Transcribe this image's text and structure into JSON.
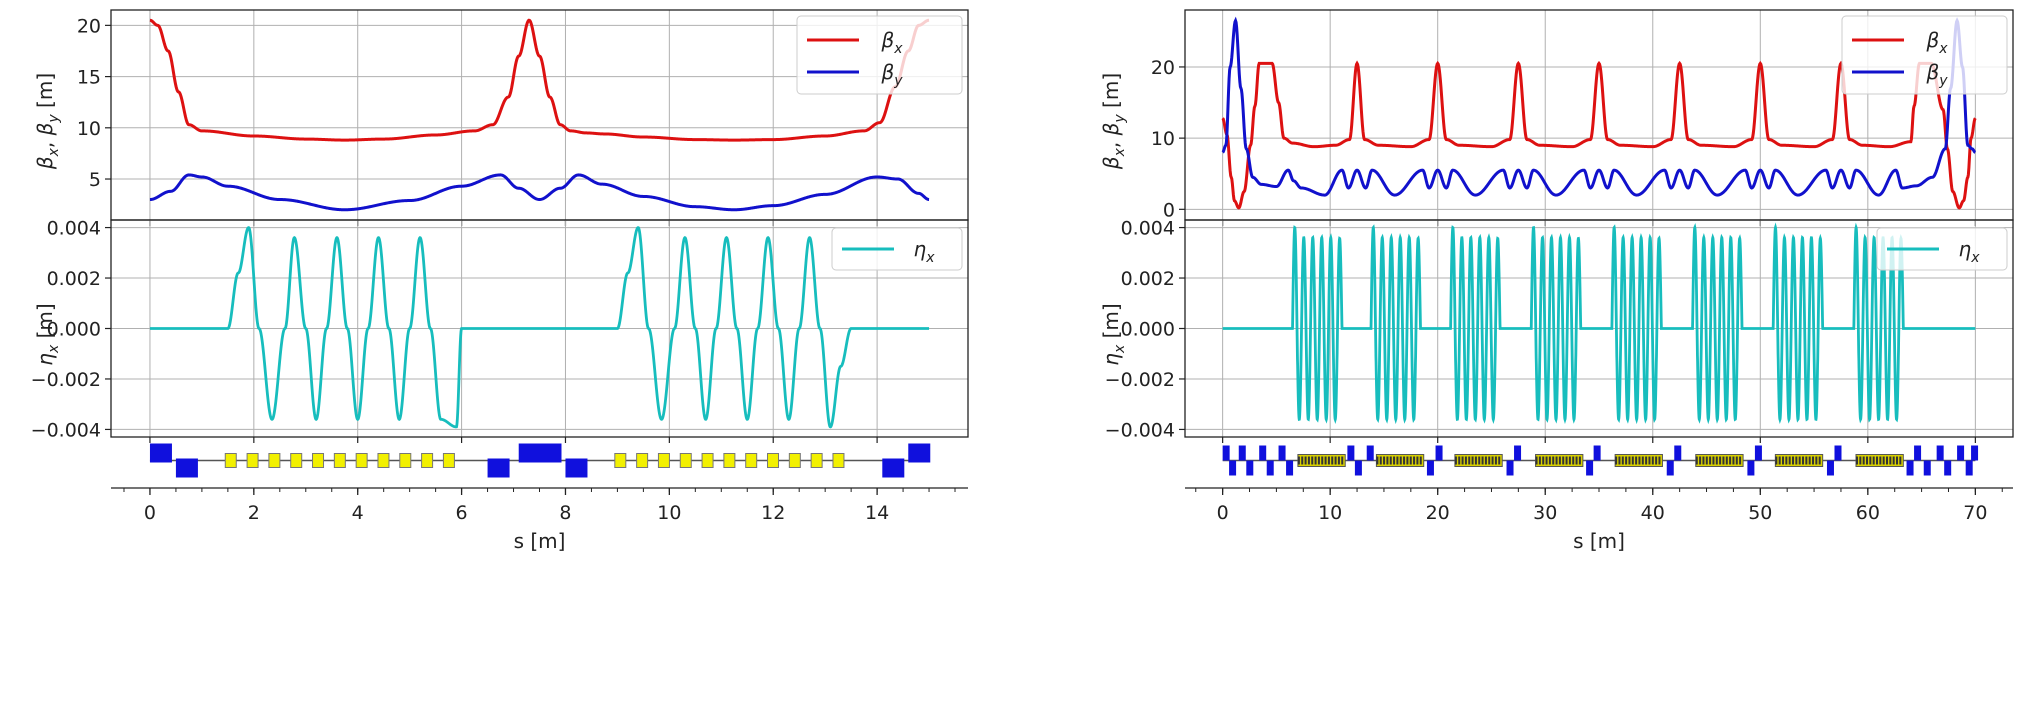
{
  "chart_data": [
    {
      "name": "left",
      "type": "line",
      "s_range": [
        0,
        15
      ],
      "xlim": [
        -0.75,
        15.75
      ],
      "xticks": [
        "0",
        "2",
        "4",
        "6",
        "8",
        "10",
        "12",
        "14"
      ],
      "xtick_values": [
        0,
        2,
        4,
        6,
        8,
        10,
        12,
        14
      ],
      "xlabel": "s [m]",
      "beta": {
        "ylabel": "β_x, β_y [m]",
        "ylim": [
          1.0,
          21.5
        ],
        "yticks": [
          "5",
          "10",
          "15",
          "20"
        ],
        "ytick_values": [
          5,
          10,
          15,
          20
        ],
        "series": [
          {
            "name": "β_x",
            "color": "#dd1111",
            "s": [
              0,
              0.15,
              0.35,
              0.55,
              0.75,
              1.0,
              2.0,
              3.0,
              3.75,
              4.5,
              5.5,
              6.25,
              6.6,
              6.9,
              7.1,
              7.3,
              7.5,
              7.7,
              7.9,
              8.1,
              8.4,
              8.75,
              9.5,
              10.5,
              11.25,
              12.0,
              13.0,
              13.75,
              14.05,
              14.35,
              14.6,
              14.8,
              15.0
            ],
            "values": [
              20.5,
              20.0,
              17.5,
              13.5,
              10.3,
              9.7,
              9.2,
              8.9,
              8.8,
              8.9,
              9.3,
              9.7,
              10.3,
              13.0,
              17.0,
              20.5,
              17.0,
              13.0,
              10.3,
              9.7,
              9.5,
              9.4,
              9.1,
              8.85,
              8.8,
              8.85,
              9.2,
              9.7,
              10.5,
              14.0,
              17.5,
              20.0,
              20.5
            ]
          },
          {
            "name": "β_y",
            "color": "#1111cc",
            "s": [
              0,
              0.4,
              0.75,
              1.0,
              1.5,
              2.5,
              3.75,
              5.0,
              6.0,
              6.75,
              7.1,
              7.5,
              7.9,
              8.25,
              8.7,
              9.5,
              10.5,
              11.25,
              12.0,
              13.0,
              14.0,
              14.4,
              14.8,
              15.0
            ],
            "values": [
              3.0,
              3.8,
              5.4,
              5.2,
              4.3,
              3.0,
              2.0,
              2.9,
              4.3,
              5.4,
              4.1,
              3.0,
              4.1,
              5.4,
              4.5,
              3.3,
              2.3,
              2.0,
              2.4,
              3.5,
              5.2,
              5.0,
              3.6,
              3.0
            ]
          }
        ]
      },
      "eta": {
        "ylabel": "η_x [m]",
        "ylim": [
          -0.0043,
          0.0043
        ],
        "yticks": [
          "0.004",
          "0.002",
          "0.000",
          "−0.002",
          "−0.004"
        ],
        "ytick_values": [
          0.004,
          0.002,
          0.0,
          -0.002,
          -0.004
        ],
        "series": [
          {
            "name": "η_x",
            "color": "#17bdbd",
            "s": [
              0,
              1.5,
              1.7,
              1.9,
              2.1,
              2.35,
              2.6,
              2.78,
              3.0,
              3.2,
              3.4,
              3.6,
              3.8,
              4.0,
              4.2,
              4.4,
              4.6,
              4.8,
              5.0,
              5.2,
              5.4,
              5.6,
              5.9,
              6.0,
              9.0,
              9.2,
              9.4,
              9.6,
              9.85,
              10.1,
              10.3,
              10.5,
              10.7,
              10.9,
              11.1,
              11.3,
              11.5,
              11.7,
              11.9,
              12.1,
              12.3,
              12.5,
              12.7,
              12.9,
              13.1,
              13.3,
              13.5,
              15.0
            ],
            "values": [
              0.0,
              0.0,
              0.0022,
              0.004,
              0.0,
              -0.0036,
              0.0,
              0.0036,
              0.0,
              -0.0036,
              0.0,
              0.0036,
              0.0,
              -0.0036,
              0.0,
              0.0036,
              0.0,
              -0.0036,
              0.0,
              0.0036,
              0.0,
              -0.0036,
              -0.0039,
              0.0,
              0.0,
              0.0022,
              0.004,
              0.0,
              -0.0036,
              0.0,
              0.0036,
              0.0,
              -0.0036,
              0.0,
              0.0036,
              0.0,
              -0.0036,
              0.0,
              0.0036,
              0.0,
              -0.0036,
              0.0,
              0.0036,
              0.0,
              -0.0039,
              -0.0015,
              0.0,
              0.0
            ]
          }
        ]
      }
    },
    {
      "name": "right",
      "type": "line",
      "s_range": [
        0,
        70
      ],
      "xlim": [
        -3.5,
        73.5
      ],
      "xticks": [
        "0",
        "10",
        "20",
        "30",
        "40",
        "50",
        "60",
        "70"
      ],
      "xtick_values": [
        0,
        10,
        20,
        30,
        40,
        50,
        60,
        70
      ],
      "xlabel": "s [m]",
      "beta": {
        "ylabel": "β_x, β_y [m]",
        "ylim": [
          -1.5,
          28.0
        ],
        "yticks": [
          "0",
          "10",
          "20"
        ],
        "ytick_values": [
          0,
          10,
          20
        ],
        "series": [
          {
            "name": "β_x",
            "color": "#dd1111",
            "s": [
              0,
              0.4,
              0.8,
              1.1,
              1.5,
              2.0,
              2.6,
              3.0,
              3.4,
              4.6,
              5.2,
              5.7,
              6.5,
              8.5,
              10.5,
              11.8,
              12.5,
              13.2,
              14.5,
              17.5,
              19.2,
              20.0,
              20.8,
              22.0,
              25.0,
              26.7,
              27.5,
              28.3,
              29.5,
              32.5,
              34.2,
              35.0,
              35.8,
              37.0,
              40.0,
              41.7,
              42.5,
              43.3,
              44.5,
              47.5,
              49.2,
              50.0,
              50.8,
              52.0,
              55.0,
              56.7,
              57.5,
              58.3,
              59.5,
              62.0,
              64.0,
              64.3,
              64.8,
              65.9,
              67.0,
              67.4,
              67.9,
              68.5,
              68.9,
              69.3,
              69.6,
              70.0
            ],
            "values": [
              12.8,
              10.5,
              4.5,
              1.2,
              0.2,
              2.5,
              9.0,
              14.5,
              20.5,
              20.5,
              15.0,
              10.0,
              9.3,
              8.8,
              9.0,
              9.8,
              20.5,
              9.8,
              9.0,
              8.8,
              9.8,
              20.5,
              9.8,
              9.0,
              8.8,
              9.8,
              20.5,
              9.8,
              9.0,
              8.8,
              9.8,
              20.5,
              9.8,
              9.0,
              8.8,
              9.8,
              20.5,
              9.8,
              9.0,
              8.8,
              9.8,
              20.5,
              9.8,
              9.0,
              8.8,
              9.8,
              20.5,
              9.8,
              9.0,
              8.8,
              9.5,
              14.5,
              20.5,
              20.5,
              14.0,
              8.5,
              2.5,
              0.2,
              1.2,
              4.5,
              10.0,
              12.8
            ]
          },
          {
            "name": "β_y",
            "color": "#1111cc",
            "s": [
              0,
              0.3,
              0.7,
              1.2,
              1.7,
              2.2,
              2.8,
              3.6,
              5.0,
              6.1,
              6.6,
              7.3,
              9.5,
              11.1,
              11.7,
              12.5,
              13.3,
              13.9,
              16.0,
              18.6,
              19.2,
              20.0,
              20.8,
              21.4,
              23.5,
              26.1,
              26.7,
              27.5,
              28.3,
              28.9,
              31.0,
              33.6,
              34.2,
              35.0,
              35.8,
              36.4,
              38.5,
              41.1,
              41.7,
              42.5,
              43.3,
              43.9,
              46.0,
              48.6,
              49.2,
              50.0,
              50.8,
              51.4,
              53.5,
              56.1,
              56.7,
              57.5,
              58.3,
              58.9,
              61.0,
              62.6,
              63.2,
              64.5,
              66.0,
              67.2,
              67.7,
              68.3,
              68.8,
              69.3,
              69.7,
              70.0
            ],
            "values": [
              8.0,
              9.0,
              20.0,
              26.5,
              17.0,
              8.5,
              4.5,
              3.5,
              3.2,
              5.5,
              4.0,
              3.0,
              2.0,
              5.5,
              3.0,
              5.5,
              3.0,
              5.5,
              2.0,
              5.5,
              3.0,
              5.5,
              3.0,
              5.5,
              2.0,
              5.5,
              3.0,
              5.5,
              3.0,
              5.5,
              2.0,
              5.5,
              3.0,
              5.5,
              3.0,
              5.5,
              2.0,
              5.5,
              3.0,
              5.5,
              3.0,
              5.5,
              2.0,
              5.5,
              3.0,
              5.5,
              3.0,
              5.5,
              2.0,
              5.5,
              3.0,
              5.5,
              3.0,
              5.5,
              2.0,
              5.5,
              3.0,
              3.3,
              4.5,
              8.5,
              17.0,
              26.5,
              20.0,
              9.0,
              8.5,
              8.0
            ]
          }
        ]
      },
      "eta": {
        "ylabel": "η_x [m]",
        "ylim": [
          -0.0043,
          0.0043
        ],
        "yticks": [
          "0.004",
          "0.002",
          "0.000",
          "−0.002",
          "−0.004"
        ],
        "ytick_values": [
          0.004,
          0.002,
          0.0,
          -0.002,
          -0.004
        ],
        "series": [
          {
            "name": "η_x",
            "color": "#17bdbd",
            "bursts": [
              6.5,
              13.8,
              21.2,
              28.7,
              36.2,
              43.7,
              51.2,
              58.7
            ],
            "burst_length": 4.6,
            "oscillations": 5,
            "peak": 0.004,
            "amplitude": 0.0036,
            "span": [
              0,
              70
            ]
          }
        ]
      }
    }
  ]
}
